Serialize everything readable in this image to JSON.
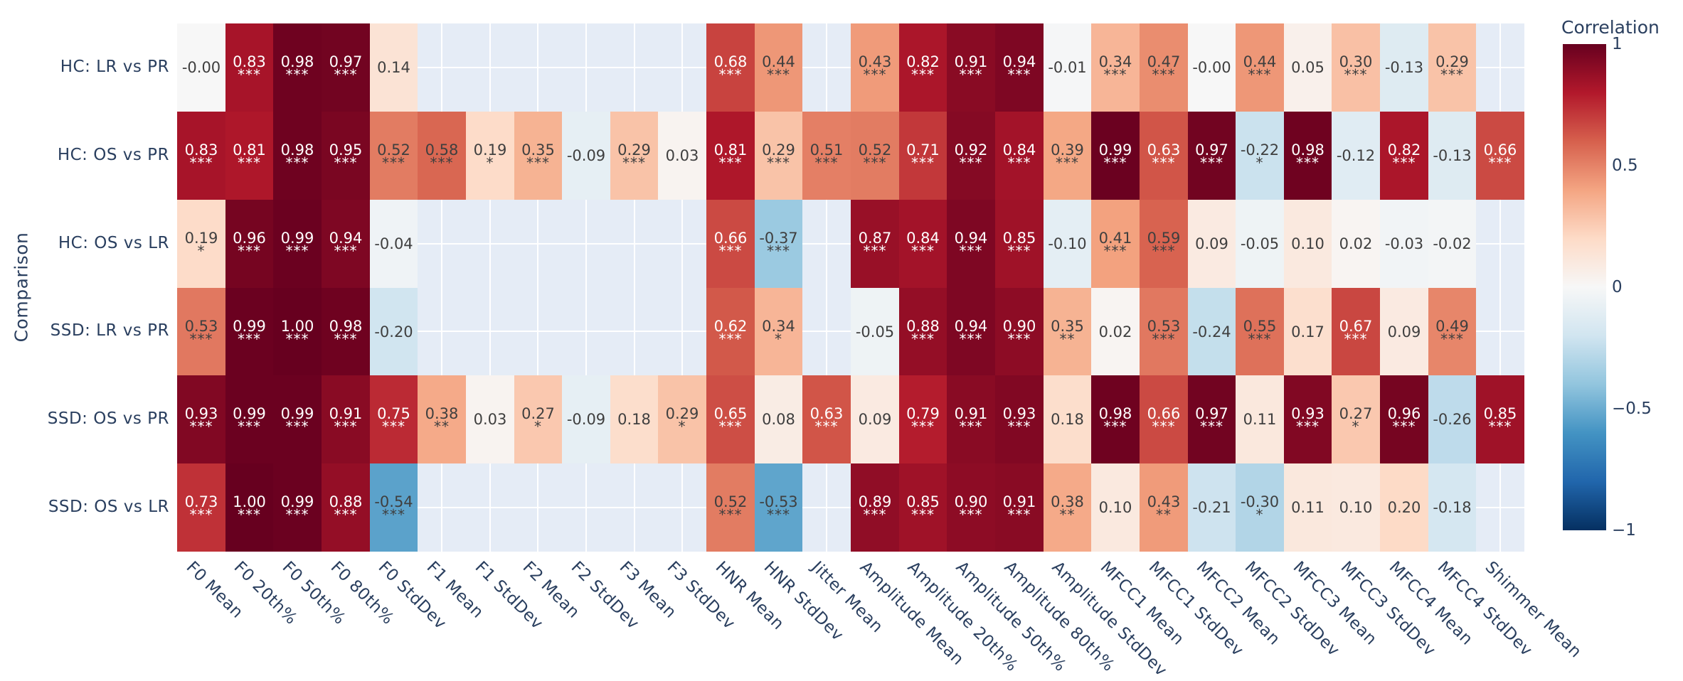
{
  "chart_data": {
    "type": "heatmap",
    "title": "",
    "xlabel": "",
    "ylabel": "Comparison",
    "grid": true,
    "plot_background": "#e5ecf6",
    "gridline_color": "#ffffff",
    "axis_font_color": "#2a3f5f",
    "cell_text_dark": "#3f3f3f",
    "cell_text_light": "#ffffff",
    "colorbar": {
      "title": "Correlation",
      "cmin": -1,
      "cmax": 1,
      "ticks": [
        {
          "value": 1,
          "label": "1"
        },
        {
          "value": 0.5,
          "label": "0.5"
        },
        {
          "value": 0,
          "label": "0"
        },
        {
          "value": -0.5,
          "label": "−0.5"
        },
        {
          "value": -1,
          "label": "−1"
        }
      ]
    },
    "colorscale_rdbu_r": [
      {
        "v": 1.0,
        "c": "#67001f"
      },
      {
        "v": 0.8,
        "c": "#b2182b"
      },
      {
        "v": 0.6,
        "c": "#d6604d"
      },
      {
        "v": 0.4,
        "c": "#f4a582"
      },
      {
        "v": 0.2,
        "c": "#fddbc7"
      },
      {
        "v": 0.0,
        "c": "#f7f7f7"
      },
      {
        "v": -0.2,
        "c": "#d1e5f0"
      },
      {
        "v": -0.4,
        "c": "#92c5de"
      },
      {
        "v": -0.6,
        "c": "#4393c3"
      },
      {
        "v": -0.8,
        "c": "#2166ac"
      },
      {
        "v": -1.0,
        "c": "#053061"
      }
    ],
    "x_categories": [
      "F0 Mean",
      "F0 20th%",
      "F0 50th%",
      "F0 80th%",
      "F0 StdDev",
      "F1 Mean",
      "F1 StdDev",
      "F2 Mean",
      "F2 StdDev",
      "F3 Mean",
      "F3 StdDev",
      "HNR Mean",
      "HNR StdDev",
      "Jitter Mean",
      "Amplitude Mean",
      "Amplitude 20th%",
      "Amplitude 50th%",
      "Amplitude 80th%",
      "Amplitude StdDev",
      "MFCC1 Mean",
      "MFCC1 StdDev",
      "MFCC2 Mean",
      "MFCC2 StdDev",
      "MFCC3 Mean",
      "MFCC3 StdDev",
      "MFCC4 Mean",
      "MFCC4 StdDev",
      "Shimmer Mean"
    ],
    "rows": [
      {
        "label": "HC: LR vs PR",
        "cells": [
          [
            "-0.00",
            ""
          ],
          [
            "0.83",
            "***"
          ],
          [
            "0.98",
            "***"
          ],
          [
            "0.97",
            "***"
          ],
          [
            "0.14",
            ""
          ],
          null,
          null,
          null,
          null,
          null,
          null,
          [
            "0.68",
            "***"
          ],
          [
            "0.44",
            "***"
          ],
          null,
          [
            "0.43",
            "***"
          ],
          [
            "0.82",
            "***"
          ],
          [
            "0.91",
            "***"
          ],
          [
            "0.94",
            "***"
          ],
          [
            "-0.01",
            ""
          ],
          [
            "0.34",
            "***"
          ],
          [
            "0.47",
            "***"
          ],
          [
            "-0.00",
            ""
          ],
          [
            "0.44",
            "***"
          ],
          [
            "0.05",
            ""
          ],
          [
            "0.30",
            "***"
          ],
          [
            "-0.13",
            ""
          ],
          [
            "0.29",
            "***"
          ],
          null
        ]
      },
      {
        "label": "HC: OS vs PR",
        "cells": [
          [
            "0.83",
            "***"
          ],
          [
            "0.81",
            "***"
          ],
          [
            "0.98",
            "***"
          ],
          [
            "0.95",
            "***"
          ],
          [
            "0.52",
            "***"
          ],
          [
            "0.58",
            "***"
          ],
          [
            "0.19",
            "*"
          ],
          [
            "0.35",
            "***"
          ],
          [
            "-0.09",
            ""
          ],
          [
            "0.29",
            "***"
          ],
          [
            "0.03",
            ""
          ],
          [
            "0.81",
            "***"
          ],
          [
            "0.29",
            "***"
          ],
          [
            "0.51",
            "***"
          ],
          [
            "0.52",
            "***"
          ],
          [
            "0.71",
            "***"
          ],
          [
            "0.92",
            "***"
          ],
          [
            "0.84",
            "***"
          ],
          [
            "0.39",
            "***"
          ],
          [
            "0.99",
            "***"
          ],
          [
            "0.63",
            "***"
          ],
          [
            "0.97",
            "***"
          ],
          [
            "-0.22",
            "*"
          ],
          [
            "0.98",
            "***"
          ],
          [
            "-0.12",
            ""
          ],
          [
            "0.82",
            "***"
          ],
          [
            "-0.13",
            ""
          ],
          [
            "0.66",
            "***"
          ]
        ]
      },
      {
        "label": "HC: OS vs LR",
        "cells": [
          [
            "0.19",
            "*"
          ],
          [
            "0.96",
            "***"
          ],
          [
            "0.99",
            "***"
          ],
          [
            "0.94",
            "***"
          ],
          [
            "-0.04",
            ""
          ],
          null,
          null,
          null,
          null,
          null,
          null,
          [
            "0.66",
            "***"
          ],
          [
            "-0.37",
            "***"
          ],
          null,
          [
            "0.87",
            "***"
          ],
          [
            "0.84",
            "***"
          ],
          [
            "0.94",
            "***"
          ],
          [
            "0.85",
            "***"
          ],
          [
            "-0.10",
            ""
          ],
          [
            "0.41",
            "***"
          ],
          [
            "0.59",
            "***"
          ],
          [
            "0.09",
            ""
          ],
          [
            "-0.05",
            ""
          ],
          [
            "0.10",
            ""
          ],
          [
            "0.02",
            ""
          ],
          [
            "-0.03",
            ""
          ],
          [
            "-0.02",
            ""
          ],
          null
        ]
      },
      {
        "label": "SSD: LR vs PR",
        "cells": [
          [
            "0.53",
            "***"
          ],
          [
            "0.99",
            "***"
          ],
          [
            "1.00",
            "***"
          ],
          [
            "0.98",
            "***"
          ],
          [
            "-0.20",
            ""
          ],
          null,
          null,
          null,
          null,
          null,
          null,
          [
            "0.62",
            "***"
          ],
          [
            "0.34",
            "*"
          ],
          null,
          [
            "-0.05",
            ""
          ],
          [
            "0.88",
            "***"
          ],
          [
            "0.94",
            "***"
          ],
          [
            "0.90",
            "***"
          ],
          [
            "0.35",
            "**"
          ],
          [
            "0.02",
            ""
          ],
          [
            "0.53",
            "***"
          ],
          [
            "-0.24",
            ""
          ],
          [
            "0.55",
            "***"
          ],
          [
            "0.17",
            ""
          ],
          [
            "0.67",
            "***"
          ],
          [
            "0.09",
            ""
          ],
          [
            "0.49",
            "***"
          ],
          null
        ]
      },
      {
        "label": "SSD: OS vs PR",
        "cells": [
          [
            "0.93",
            "***"
          ],
          [
            "0.99",
            "***"
          ],
          [
            "0.99",
            "***"
          ],
          [
            "0.91",
            "***"
          ],
          [
            "0.75",
            "***"
          ],
          [
            "0.38",
            "**"
          ],
          [
            "0.03",
            ""
          ],
          [
            "0.27",
            "*"
          ],
          [
            "-0.09",
            ""
          ],
          [
            "0.18",
            ""
          ],
          [
            "0.29",
            "*"
          ],
          [
            "0.65",
            "***"
          ],
          [
            "0.08",
            ""
          ],
          [
            "0.63",
            "***"
          ],
          [
            "0.09",
            ""
          ],
          [
            "0.79",
            "***"
          ],
          [
            "0.91",
            "***"
          ],
          [
            "0.93",
            "***"
          ],
          [
            "0.18",
            ""
          ],
          [
            "0.98",
            "***"
          ],
          [
            "0.66",
            "***"
          ],
          [
            "0.97",
            "***"
          ],
          [
            "0.11",
            ""
          ],
          [
            "0.93",
            "***"
          ],
          [
            "0.27",
            "*"
          ],
          [
            "0.96",
            "***"
          ],
          [
            "-0.26",
            ""
          ],
          [
            "0.85",
            "***"
          ]
        ]
      },
      {
        "label": "SSD: OS vs LR",
        "cells": [
          [
            "0.73",
            "***"
          ],
          [
            "1.00",
            "***"
          ],
          [
            "0.99",
            "***"
          ],
          [
            "0.88",
            "***"
          ],
          [
            "-0.54",
            "***"
          ],
          null,
          null,
          null,
          null,
          null,
          null,
          [
            "0.52",
            "***"
          ],
          [
            "-0.53",
            "***"
          ],
          null,
          [
            "0.89",
            "***"
          ],
          [
            "0.85",
            "***"
          ],
          [
            "0.90",
            "***"
          ],
          [
            "0.91",
            "***"
          ],
          [
            "0.38",
            "**"
          ],
          [
            "0.10",
            ""
          ],
          [
            "0.43",
            "**"
          ],
          [
            "-0.21",
            ""
          ],
          [
            "-0.30",
            "*"
          ],
          [
            "0.11",
            ""
          ],
          [
            "0.10",
            ""
          ],
          [
            "0.20",
            ""
          ],
          [
            "-0.18",
            ""
          ],
          null
        ]
      }
    ]
  }
}
